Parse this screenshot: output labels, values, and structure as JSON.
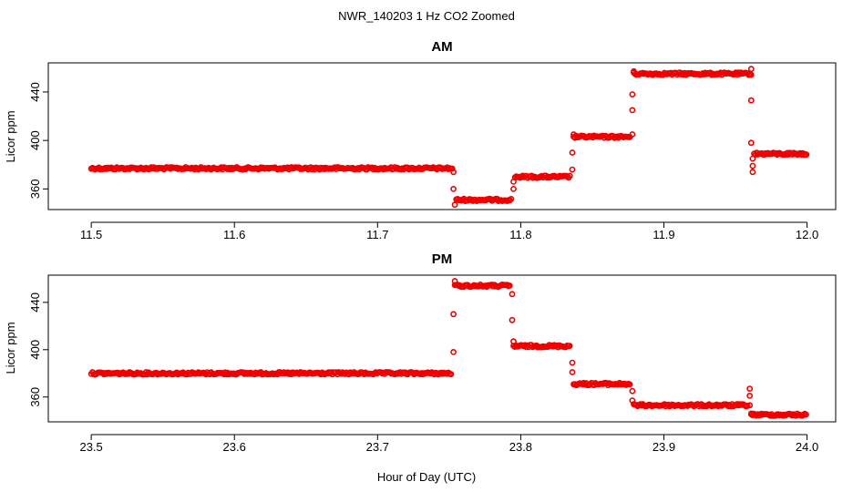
{
  "figure": {
    "title": "NWR_140203  1 Hz CO2 Zoomed",
    "xlabel": "Hour of Day (UTC)"
  },
  "chart_data": [
    {
      "type": "scatter",
      "title": "AM",
      "ylabel": "Licor ppm",
      "xlim": [
        11.47,
        12.02
      ],
      "ylim": [
        343,
        464
      ],
      "xticks": [
        11.5,
        11.6,
        11.7,
        11.8,
        11.9,
        12.0
      ],
      "xtick_labels": [
        "11.5",
        "11.6",
        "11.7",
        "11.8",
        "11.9",
        "12.0"
      ],
      "yticks": [
        360,
        400,
        440
      ],
      "ytick_labels": [
        "360",
        "400",
        "440"
      ],
      "point_color": "#ee0000",
      "segments": [
        {
          "x_start": 11.5,
          "x_end": 11.753,
          "y": 377
        },
        {
          "x_start": 11.755,
          "x_end": 11.794,
          "y": 351
        },
        {
          "x_start": 11.796,
          "x_end": 11.835,
          "y": 370
        },
        {
          "x_start": 11.837,
          "x_end": 11.877,
          "y": 403
        },
        {
          "x_start": 11.879,
          "x_end": 11.961,
          "y": 455
        },
        {
          "x_start": 11.963,
          "x_end": 12.0,
          "y": 389
        }
      ],
      "transition_points": [
        {
          "x": 11.753,
          "y": 374
        },
        {
          "x": 11.753,
          "y": 360
        },
        {
          "x": 11.754,
          "y": 347
        },
        {
          "x": 11.795,
          "y": 360
        },
        {
          "x": 11.795,
          "y": 366
        },
        {
          "x": 11.836,
          "y": 376
        },
        {
          "x": 11.836,
          "y": 390
        },
        {
          "x": 11.837,
          "y": 405
        },
        {
          "x": 11.878,
          "y": 425
        },
        {
          "x": 11.878,
          "y": 438
        },
        {
          "x": 11.879,
          "y": 457
        },
        {
          "x": 11.878,
          "y": 405
        },
        {
          "x": 11.961,
          "y": 433
        },
        {
          "x": 11.961,
          "y": 398
        },
        {
          "x": 11.962,
          "y": 379
        },
        {
          "x": 11.962,
          "y": 374
        },
        {
          "x": 11.962,
          "y": 385
        },
        {
          "x": 11.961,
          "y": 459
        }
      ]
    },
    {
      "type": "scatter",
      "title": "PM",
      "ylabel": "Licor ppm",
      "xlim": [
        23.47,
        24.02
      ],
      "ylim": [
        339,
        463
      ],
      "xticks": [
        23.5,
        23.6,
        23.7,
        23.8,
        23.9,
        24.0
      ],
      "xtick_labels": [
        "23.5",
        "23.6",
        "23.7",
        "23.8",
        "23.9",
        "24.0"
      ],
      "yticks": [
        360,
        400,
        440
      ],
      "ytick_labels": [
        "360",
        "400",
        "440"
      ],
      "point_color": "#ee0000",
      "segments": [
        {
          "x_start": 23.5,
          "x_end": 23.752,
          "y": 380
        },
        {
          "x_start": 23.754,
          "x_end": 23.793,
          "y": 454
        },
        {
          "x_start": 23.795,
          "x_end": 23.835,
          "y": 403
        },
        {
          "x_start": 23.837,
          "x_end": 23.877,
          "y": 371
        },
        {
          "x_start": 23.879,
          "x_end": 23.959,
          "y": 353
        },
        {
          "x_start": 23.961,
          "x_end": 24.0,
          "y": 345
        }
      ],
      "transition_points": [
        {
          "x": 23.753,
          "y": 398
        },
        {
          "x": 23.753,
          "y": 430
        },
        {
          "x": 23.754,
          "y": 458
        },
        {
          "x": 23.794,
          "y": 447
        },
        {
          "x": 23.794,
          "y": 425
        },
        {
          "x": 23.795,
          "y": 407
        },
        {
          "x": 23.836,
          "y": 389
        },
        {
          "x": 23.836,
          "y": 381
        },
        {
          "x": 23.878,
          "y": 365
        },
        {
          "x": 23.878,
          "y": 357
        },
        {
          "x": 23.96,
          "y": 367
        },
        {
          "x": 23.96,
          "y": 361
        },
        {
          "x": 23.96,
          "y": 353
        },
        {
          "x": 23.961,
          "y": 346
        }
      ]
    }
  ]
}
